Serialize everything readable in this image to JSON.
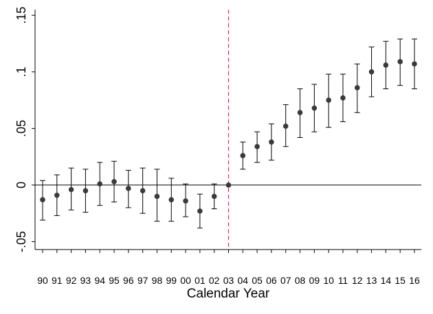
{
  "chart_data": {
    "type": "scatter",
    "subtype": "coefficient plot with 95% confidence intervals",
    "xlabel": "Calendar Year",
    "ylabel": "",
    "title": "",
    "categories": [
      "90",
      "91",
      "92",
      "93",
      "94",
      "95",
      "96",
      "97",
      "98",
      "99",
      "00",
      "01",
      "02",
      "03",
      "04",
      "05",
      "06",
      "07",
      "08",
      "09",
      "10",
      "11",
      "12",
      "13",
      "14",
      "15",
      "16"
    ],
    "series": [
      {
        "estimate": [
          -0.013,
          -0.009,
          -0.004,
          -0.005,
          0.001,
          0.003,
          -0.003,
          -0.005,
          -0.01,
          -0.013,
          -0.014,
          -0.023,
          -0.01,
          0.0,
          0.026,
          0.034,
          0.038,
          0.052,
          0.064,
          0.068,
          0.075,
          0.077,
          0.086,
          0.1,
          0.106,
          0.109,
          0.107
        ],
        "ci_low": [
          -0.031,
          -0.027,
          -0.022,
          -0.024,
          -0.018,
          -0.015,
          -0.02,
          -0.025,
          -0.032,
          -0.032,
          -0.028,
          -0.038,
          -0.021,
          0.0,
          0.014,
          0.02,
          0.022,
          0.034,
          0.042,
          0.047,
          0.051,
          0.056,
          0.064,
          0.078,
          0.085,
          0.088,
          0.085
        ],
        "ci_high": [
          0.004,
          0.009,
          0.015,
          0.014,
          0.02,
          0.021,
          0.013,
          0.015,
          0.014,
          0.006,
          0.001,
          -0.008,
          0.001,
          0.0,
          0.038,
          0.047,
          0.054,
          0.071,
          0.085,
          0.089,
          0.098,
          0.098,
          0.107,
          0.122,
          0.127,
          0.129,
          0.129
        ]
      }
    ],
    "yticks": [
      -0.05,
      0,
      0.05,
      0.1,
      0.15
    ],
    "ytick_labels": [
      "-.05",
      "0",
      ".05",
      ".1",
      ".15"
    ],
    "ylim": [
      -0.057,
      0.155
    ],
    "reference_hline": 0,
    "event_vline": "03",
    "grid": false,
    "colors": {
      "marker": "#3a3a3a",
      "errorbar": "#000000",
      "zero_line": "#000000",
      "event_line": "#d62728",
      "axis": "#000000"
    }
  }
}
